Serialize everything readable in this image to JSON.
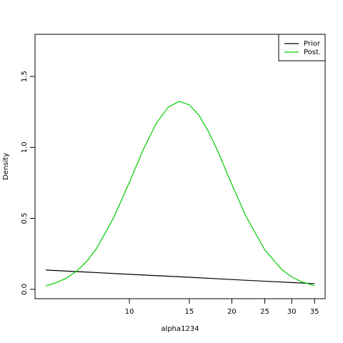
{
  "chart_data": {
    "type": "line",
    "xlabel": "alpha1234",
    "ylabel": "Density",
    "xscale": "log",
    "xlim": [
      5.28,
      37.6
    ],
    "ylim": [
      -0.066,
      1.797
    ],
    "xticks": [
      10,
      15,
      20,
      25,
      30,
      35
    ],
    "yticks": [
      {
        "value": 0,
        "label": "0.0"
      },
      0.5,
      {
        "value": 1,
        "label": "1.0"
      },
      1.5
    ],
    "legend": "top-right",
    "series": [
      {
        "name": "Prior",
        "color": "#000000",
        "x": [
          5.68,
          10,
          15,
          20,
          25,
          30,
          35
        ],
        "values": [
          0.136,
          0.106,
          0.085,
          0.069,
          0.057,
          0.048,
          0.04
        ]
      },
      {
        "name": "Post.",
        "color": "#00cd00",
        "x": [
          5.68,
          6,
          6.5,
          7,
          7.5,
          8,
          9,
          10,
          11,
          12,
          13,
          14,
          15,
          16,
          17,
          18,
          20,
          22,
          25,
          28,
          30,
          32,
          35
        ],
        "values": [
          0.026,
          0.041,
          0.076,
          0.128,
          0.198,
          0.287,
          0.507,
          0.755,
          0.988,
          1.17,
          1.283,
          1.324,
          1.3,
          1.227,
          1.12,
          0.997,
          0.739,
          0.515,
          0.278,
          0.141,
          0.087,
          0.054,
          0.026
        ]
      }
    ]
  }
}
